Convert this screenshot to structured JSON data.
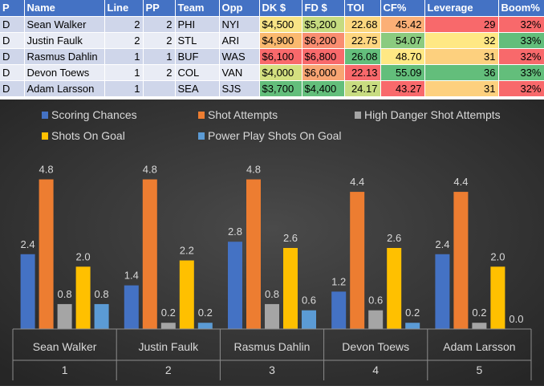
{
  "table": {
    "headers": [
      "P",
      "Name",
      "Line",
      "PP",
      "Team",
      "Opp",
      "DK $",
      "FD $",
      "TOI",
      "CF%",
      "Leverage",
      "Boom%"
    ],
    "rows": [
      {
        "P": "D",
        "Name": "Sean Walker",
        "Line": "2",
        "PP": "2",
        "Team": "PHI",
        "Opp": "NYI",
        "DK": "$4,500",
        "FD": "$5,200",
        "TOI": "22.68",
        "CF": "45.42",
        "Leverage": "29",
        "Boom": "32%"
      },
      {
        "P": "D",
        "Name": "Justin Faulk",
        "Line": "2",
        "PP": "2",
        "Team": "STL",
        "Opp": "ARI",
        "DK": "$4,900",
        "FD": "$6,200",
        "TOI": "22.75",
        "CF": "54.07",
        "Leverage": "32",
        "Boom": "33%"
      },
      {
        "P": "D",
        "Name": "Rasmus Dahlin",
        "Line": "1",
        "PP": "1",
        "Team": "BUF",
        "Opp": "WAS",
        "DK": "$6,100",
        "FD": "$6,800",
        "TOI": "26.08",
        "CF": "48.70",
        "Leverage": "31",
        "Boom": "32%"
      },
      {
        "P": "D",
        "Name": "Devon Toews",
        "Line": "1",
        "PP": "2",
        "Team": "COL",
        "Opp": "VAN",
        "DK": "$4,000",
        "FD": "$6,000",
        "TOI": "22.13",
        "CF": "55.09",
        "Leverage": "36",
        "Boom": "33%"
      },
      {
        "P": "D",
        "Name": "Adam Larsson",
        "Line": "1",
        "PP": "",
        "Team": "SEA",
        "Opp": "SJS",
        "DK": "$3,700",
        "FD": "$4,400",
        "TOI": "24.17",
        "CF": "43.27",
        "Leverage": "31",
        "Boom": "32%"
      }
    ],
    "cell_colors": {
      "DK": [
        "#f8e486",
        "#fbb96f",
        "#f8696b",
        "#d4e080",
        "#63be7b"
      ],
      "FD": [
        "#c6db80",
        "#f98d70",
        "#f8696b",
        "#f8a573",
        "#63be7b"
      ],
      "TOI": [
        "#fcd77f",
        "#fed680",
        "#63be7b",
        "#f8696b",
        "#c8dc81"
      ],
      "CF": [
        "#fbaf76",
        "#8bcb7f",
        "#ffe884",
        "#63be7b",
        "#f8696b"
      ],
      "Leverage": [
        "#f8696b",
        "#ffe884",
        "#fdd07e",
        "#63be7b",
        "#fdd07e"
      ],
      "Boom": [
        "#f8696b",
        "#63be7b",
        "#f8696b",
        "#63be7b",
        "#f8696b"
      ]
    }
  },
  "chart_data": {
    "type": "bar",
    "categories": [
      {
        "name": "Sean Walker",
        "rank": "1"
      },
      {
        "name": "Justin Faulk",
        "rank": "2"
      },
      {
        "name": "Rasmus Dahlin",
        "rank": "3"
      },
      {
        "name": "Devon Toews",
        "rank": "4"
      },
      {
        "name": "Adam Larsson",
        "rank": "5"
      }
    ],
    "series": [
      {
        "name": "Scoring Chances",
        "color": "#4472c4",
        "values": [
          2.4,
          1.4,
          2.8,
          1.2,
          2.4
        ],
        "labels": [
          "2.4",
          "1.4",
          "2.8",
          "1.2",
          "2.4"
        ]
      },
      {
        "name": "Shot Attempts",
        "color": "#ed7d31",
        "values": [
          4.8,
          4.8,
          4.8,
          4.4,
          4.4
        ],
        "labels": [
          "4.8",
          "4.8",
          "4.8",
          "4.4",
          "4.4"
        ]
      },
      {
        "name": "High Danger Shot Attempts",
        "color": "#a5a5a5",
        "values": [
          0.8,
          0.2,
          0.8,
          0.6,
          0.2
        ],
        "labels": [
          "0.8",
          "0.2",
          "0.8",
          "0.6",
          "0.2"
        ]
      },
      {
        "name": "Shots On Goal",
        "color": "#ffc000",
        "values": [
          2.0,
          2.2,
          2.6,
          2.6,
          2.0
        ],
        "labels": [
          "2.0",
          "2.2",
          "2.6",
          "2.6",
          "2.0"
        ]
      },
      {
        "name": "Power Play Shots On Goal",
        "color": "#5b9bd5",
        "values": [
          0.8,
          0.2,
          0.6,
          0.2,
          0.0
        ],
        "labels": [
          "0.8",
          "0.2",
          "0.6",
          "0.2",
          "0.0"
        ]
      }
    ],
    "ylim": [
      0,
      5.2
    ],
    "grid": false,
    "legend": "top",
    "background": "#2e2e2e"
  }
}
